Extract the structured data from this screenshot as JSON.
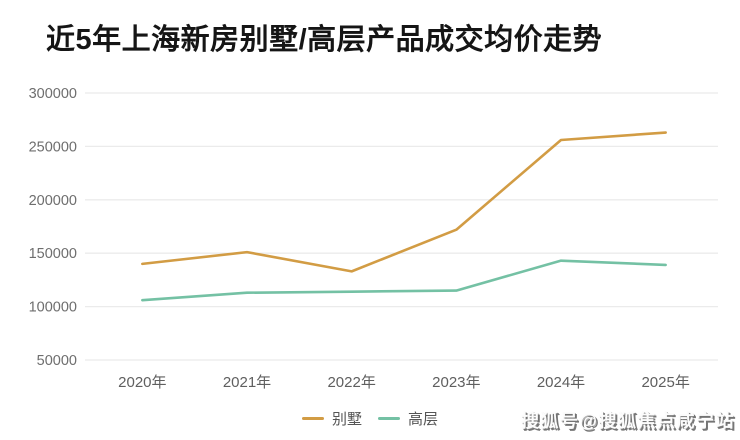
{
  "page": {
    "watermark": "搜狐号@搜狐焦点咸宁站"
  },
  "chart_data": {
    "type": "line",
    "title": "近5年上海新房别墅/高层产品成交均价走势",
    "categories": [
      "2020年",
      "2021年",
      "2022年",
      "2023年",
      "2024年",
      "2025年"
    ],
    "series": [
      {
        "name": "别墅",
        "color": "#D29C44",
        "values": [
          140000,
          151000,
          133000,
          172000,
          256000,
          263000
        ]
      },
      {
        "name": "高层",
        "color": "#74C1A4",
        "values": [
          106000,
          113000,
          114000,
          115000,
          143000,
          139000
        ]
      }
    ],
    "xlabel": "",
    "ylabel": "",
    "ylim": [
      50000,
      300000
    ],
    "yticks": [
      300000,
      250000,
      200000,
      150000,
      100000,
      50000
    ],
    "grid": true,
    "legend_position": "bottom",
    "colors": {
      "grid_line": "#EBEBEB",
      "y_tick_text": "#6E6E6E",
      "x_tick_text": "#5F5F5F",
      "title_text": "#151515",
      "legend_text": "#555555",
      "background": "#FFFFFF"
    }
  }
}
